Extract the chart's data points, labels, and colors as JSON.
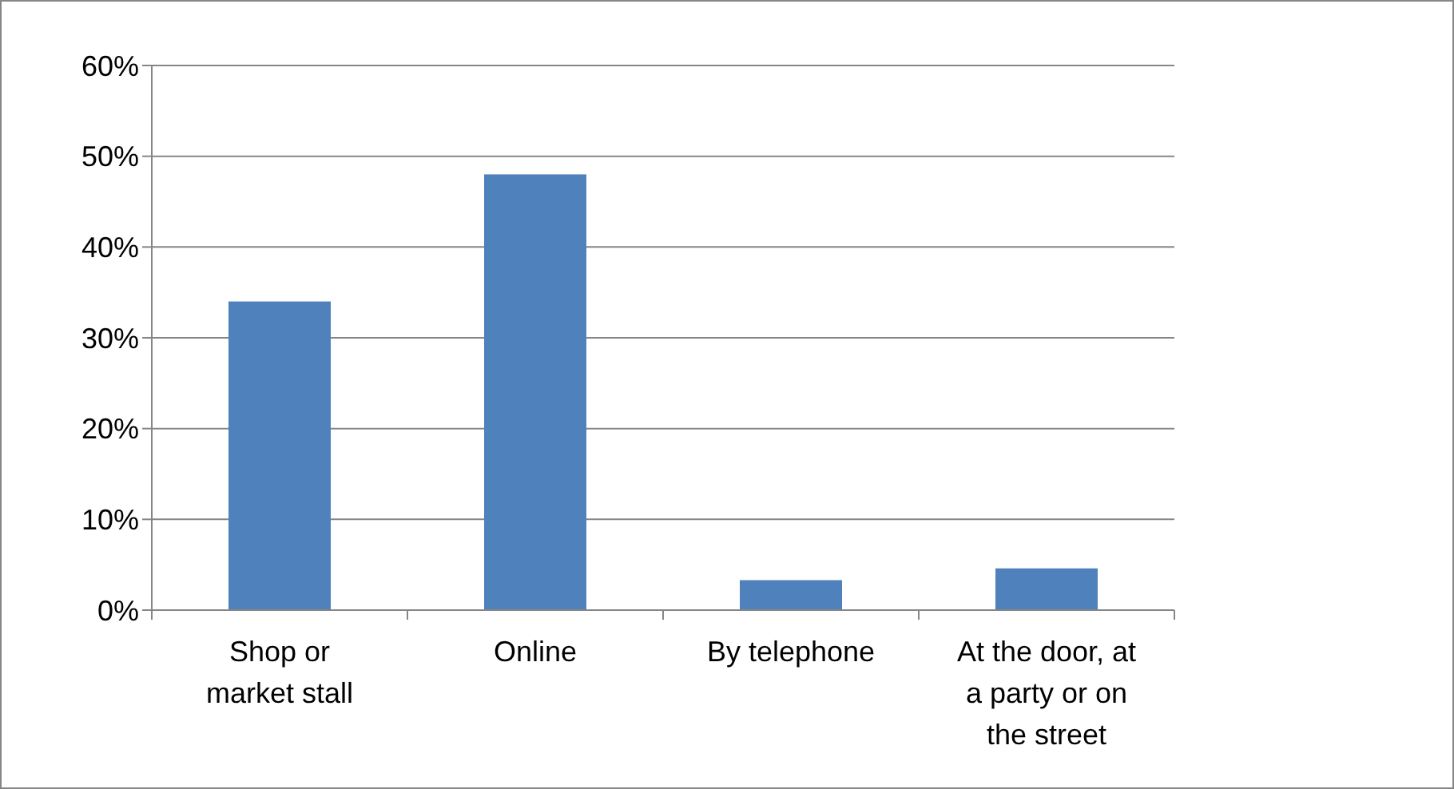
{
  "chart_data": {
    "type": "bar",
    "categories": [
      "Shop or market stall",
      "Online",
      "By telephone",
      "At the door, at a party or on the street"
    ],
    "series": [
      {
        "color": "#4f81bd",
        "values": [
          34,
          48,
          3.3,
          4.6
        ]
      }
    ],
    "ylim": [
      0,
      60
    ],
    "yticks": [
      {
        "value": 0,
        "label": "0%"
      },
      {
        "value": 10,
        "label": "10%"
      },
      {
        "value": 20,
        "label": "20%"
      },
      {
        "value": 30,
        "label": "30%"
      },
      {
        "value": 40,
        "label": "40%"
      },
      {
        "value": 50,
        "label": "50%"
      },
      {
        "value": 60,
        "label": "60%"
      }
    ],
    "grid": "y"
  }
}
